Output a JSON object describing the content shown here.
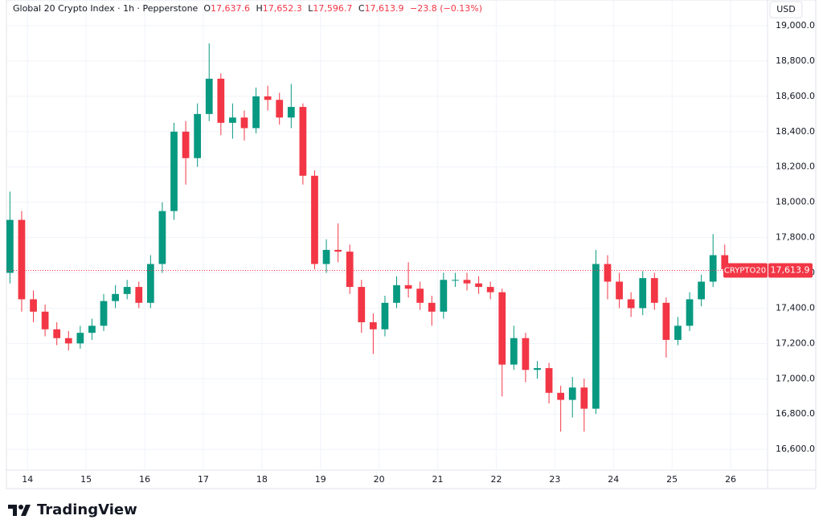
{
  "header": {
    "title": "Global 20 Crypto Index · 1h · Pepperstone",
    "o_label": "O",
    "o_value": "17,637.6",
    "h_label": "H",
    "h_value": "17,652.3",
    "l_label": "L",
    "l_value": "17,596.7",
    "c_label": "C",
    "c_value": "17,613.9",
    "change": "−23.8 (−0.13%)"
  },
  "brand": "TradingView",
  "chart_data": {
    "type": "candlestick",
    "currency": "USD",
    "symbol": "CRYPTO20",
    "current_price": {
      "value": 17613.9,
      "label": "17,613.9"
    },
    "up_color": "#089981",
    "down_color": "#f23645",
    "grid": true,
    "x": [
      13.7,
      13.9,
      14.1,
      14.3,
      14.5,
      14.7,
      14.9,
      15.1,
      15.3,
      15.5,
      15.7,
      15.9,
      16.1,
      16.3,
      16.5,
      16.7,
      16.9,
      17.1,
      17.3,
      17.5,
      17.7,
      17.9,
      18.1,
      18.3,
      18.5,
      18.7,
      18.9,
      19.1,
      19.3,
      19.5,
      19.7,
      19.9,
      20.1,
      20.3,
      20.5,
      20.7,
      20.9,
      21.1,
      21.3,
      21.5,
      21.7,
      21.9,
      22.1,
      22.3,
      22.5,
      22.7,
      22.9,
      23.1,
      23.3,
      23.5,
      23.7,
      23.9,
      24.1,
      24.3,
      24.5,
      24.7,
      24.9,
      25.1,
      25.3,
      25.5,
      25.7,
      25.9,
      26.1
    ],
    "open": [
      17600,
      17900,
      17450,
      17380,
      17280,
      17230,
      17200,
      17260,
      17300,
      17440,
      17480,
      17520,
      17430,
      17650,
      17950,
      18400,
      18250,
      18500,
      18700,
      18450,
      18480,
      18420,
      18600,
      18580,
      18480,
      18540,
      18150,
      17650,
      17730,
      17720,
      17520,
      17320,
      17280,
      17430,
      17530,
      17510,
      17430,
      17380,
      17560,
      17560,
      17540,
      17520,
      17490,
      17080,
      17230,
      17050,
      17060,
      16920,
      16880,
      16950,
      16830,
      17650,
      17550,
      17450,
      17400,
      17570,
      17430,
      17220,
      17300,
      17450,
      17550,
      17700,
      17637.6
    ],
    "high": [
      18060,
      17950,
      17500,
      17420,
      17320,
      17270,
      17300,
      17340,
      17480,
      17530,
      17560,
      17550,
      17700,
      18000,
      18450,
      18460,
      18560,
      18900,
      18730,
      18560,
      18520,
      18650,
      18660,
      18620,
      18670,
      18560,
      18180,
      17790,
      17880,
      17760,
      17560,
      17370,
      17470,
      17580,
      17660,
      17550,
      17470,
      17600,
      17600,
      17600,
      17580,
      17550,
      17510,
      17300,
      17260,
      17100,
      17090,
      16960,
      17010,
      17000,
      17730,
      17700,
      17600,
      17490,
      17610,
      17600,
      17460,
      17350,
      17490,
      17590,
      17820,
      17760,
      17652.3
    ],
    "low": [
      17540,
      17380,
      17320,
      17240,
      17190,
      17160,
      17170,
      17220,
      17270,
      17400,
      17450,
      17400,
      17400,
      17600,
      17900,
      18100,
      18200,
      18460,
      18380,
      18360,
      18350,
      18390,
      18520,
      18440,
      18420,
      18100,
      17620,
      17600,
      17660,
      17480,
      17260,
      17140,
      17240,
      17400,
      17460,
      17390,
      17300,
      17340,
      17520,
      17500,
      17480,
      17450,
      16900,
      17050,
      16980,
      17000,
      16860,
      16700,
      16780,
      16700,
      16800,
      17450,
      17400,
      17350,
      17360,
      17390,
      17120,
      17190,
      17270,
      17410,
      17520,
      17580,
      17596.7
    ],
    "close": [
      17900,
      17450,
      17380,
      17280,
      17230,
      17200,
      17260,
      17300,
      17440,
      17480,
      17520,
      17430,
      17650,
      17950,
      18400,
      18250,
      18500,
      18700,
      18450,
      18480,
      18420,
      18600,
      18580,
      18480,
      18540,
      18150,
      17650,
      17730,
      17720,
      17520,
      17320,
      17280,
      17430,
      17530,
      17510,
      17430,
      17380,
      17560,
      17560,
      17540,
      17520,
      17490,
      17080,
      17230,
      17050,
      17060,
      16920,
      16880,
      16950,
      16830,
      17650,
      17550,
      17450,
      17400,
      17570,
      17430,
      17220,
      17300,
      17450,
      17550,
      17700,
      17620,
      17613.9
    ],
    "xlim": [
      13.64,
      26.63
    ],
    "xticks": [
      14,
      15,
      16,
      17,
      18,
      19,
      20,
      21,
      22,
      23,
      24,
      25,
      26
    ],
    "ylim": [
      16482,
      19146
    ],
    "yticks": [
      {
        "value": 16600,
        "label": "16,600.0"
      },
      {
        "value": 16800,
        "label": "16,800.0"
      },
      {
        "value": 17000,
        "label": "17,000.0"
      },
      {
        "value": 17200,
        "label": "17,200.0"
      },
      {
        "value": 17400,
        "label": "17,400.0"
      },
      {
        "value": 17600,
        "label": "17,600.0"
      },
      {
        "value": 17800,
        "label": "17,800.0"
      },
      {
        "value": 18000,
        "label": "18,000.0"
      },
      {
        "value": 18200,
        "label": "18,200.0"
      },
      {
        "value": 18400,
        "label": "18,400.0"
      },
      {
        "value": 18600,
        "label": "18,600.0"
      },
      {
        "value": 18800,
        "label": "18,800.0"
      },
      {
        "value": 19000,
        "label": "19,000.0"
      }
    ]
  }
}
